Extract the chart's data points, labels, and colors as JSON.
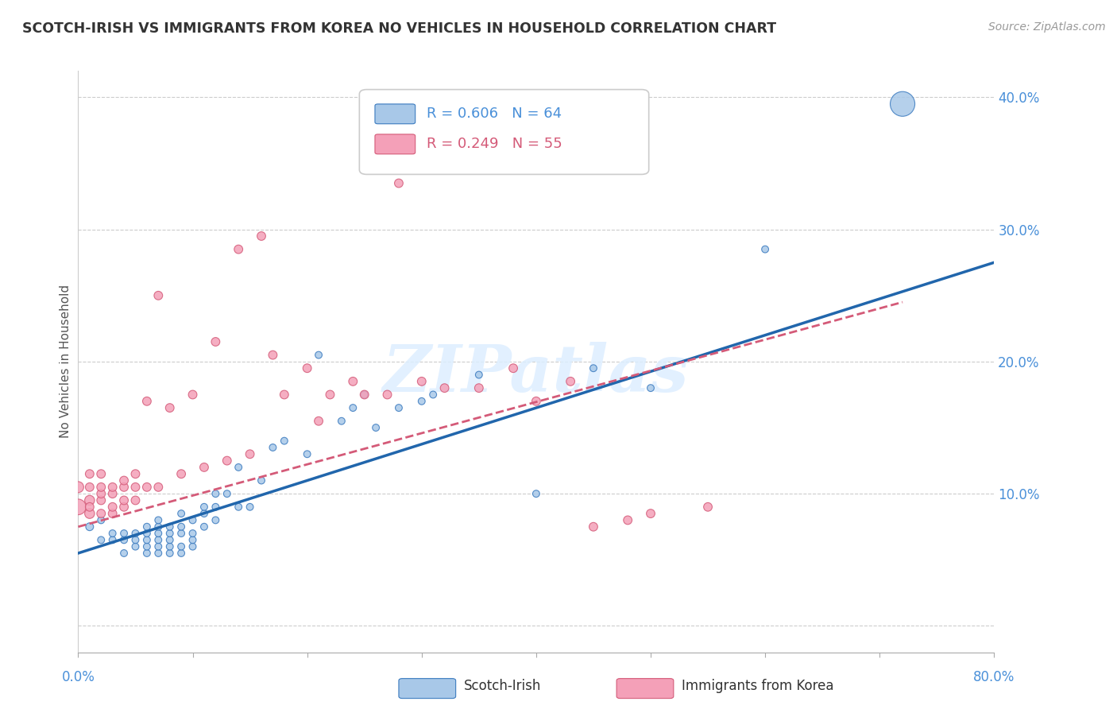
{
  "title": "SCOTCH-IRISH VS IMMIGRANTS FROM KOREA NO VEHICLES IN HOUSEHOLD CORRELATION CHART",
  "source": "Source: ZipAtlas.com",
  "ylabel": "No Vehicles in Household",
  "xlim": [
    0.0,
    0.8
  ],
  "ylim": [
    -0.02,
    0.42
  ],
  "yticks": [
    0.0,
    0.1,
    0.2,
    0.3,
    0.4
  ],
  "ytick_labels": [
    "",
    "10.0%",
    "20.0%",
    "30.0%",
    "40.0%"
  ],
  "xticks": [
    0.0,
    0.1,
    0.2,
    0.3,
    0.4,
    0.5,
    0.6,
    0.7,
    0.8
  ],
  "watermark": "ZIPatlas",
  "legend_blue_R": "R = 0.606",
  "legend_blue_N": "N = 64",
  "legend_pink_R": "R = 0.249",
  "legend_pink_N": "N = 55",
  "blue_color": "#a8c8e8",
  "pink_color": "#f4a0b8",
  "blue_edge_color": "#3a7abf",
  "pink_edge_color": "#d45a78",
  "blue_line_color": "#2166ac",
  "pink_line_color": "#d45a78",
  "blue_scatter_x": [
    0.01,
    0.02,
    0.02,
    0.03,
    0.03,
    0.04,
    0.04,
    0.04,
    0.05,
    0.05,
    0.05,
    0.06,
    0.06,
    0.06,
    0.06,
    0.06,
    0.07,
    0.07,
    0.07,
    0.07,
    0.07,
    0.07,
    0.08,
    0.08,
    0.08,
    0.08,
    0.08,
    0.09,
    0.09,
    0.09,
    0.09,
    0.09,
    0.1,
    0.1,
    0.1,
    0.1,
    0.11,
    0.11,
    0.11,
    0.12,
    0.12,
    0.12,
    0.13,
    0.14,
    0.14,
    0.15,
    0.16,
    0.17,
    0.18,
    0.2,
    0.21,
    0.23,
    0.24,
    0.25,
    0.26,
    0.28,
    0.3,
    0.31,
    0.35,
    0.4,
    0.45,
    0.5,
    0.6,
    0.72
  ],
  "blue_scatter_y": [
    0.075,
    0.065,
    0.08,
    0.065,
    0.07,
    0.055,
    0.065,
    0.07,
    0.06,
    0.065,
    0.07,
    0.055,
    0.06,
    0.065,
    0.07,
    0.075,
    0.055,
    0.06,
    0.065,
    0.07,
    0.075,
    0.08,
    0.055,
    0.06,
    0.065,
    0.07,
    0.075,
    0.055,
    0.06,
    0.07,
    0.075,
    0.085,
    0.06,
    0.065,
    0.07,
    0.08,
    0.075,
    0.085,
    0.09,
    0.08,
    0.09,
    0.1,
    0.1,
    0.09,
    0.12,
    0.09,
    0.11,
    0.135,
    0.14,
    0.13,
    0.205,
    0.155,
    0.165,
    0.175,
    0.15,
    0.165,
    0.17,
    0.175,
    0.19,
    0.1,
    0.195,
    0.18,
    0.285,
    0.395
  ],
  "blue_scatter_sizes": [
    50,
    40,
    40,
    40,
    40,
    40,
    40,
    40,
    40,
    40,
    40,
    40,
    40,
    40,
    40,
    40,
    40,
    40,
    40,
    40,
    40,
    40,
    40,
    40,
    40,
    40,
    40,
    40,
    40,
    40,
    40,
    40,
    40,
    40,
    40,
    40,
    40,
    40,
    40,
    40,
    40,
    40,
    40,
    40,
    40,
    40,
    40,
    40,
    40,
    40,
    40,
    40,
    40,
    40,
    40,
    40,
    40,
    40,
    40,
    40,
    40,
    40,
    40,
    500
  ],
  "pink_scatter_x": [
    0.0,
    0.0,
    0.01,
    0.01,
    0.01,
    0.01,
    0.01,
    0.02,
    0.02,
    0.02,
    0.02,
    0.02,
    0.03,
    0.03,
    0.03,
    0.03,
    0.04,
    0.04,
    0.04,
    0.04,
    0.05,
    0.05,
    0.05,
    0.06,
    0.06,
    0.07,
    0.07,
    0.08,
    0.09,
    0.1,
    0.11,
    0.12,
    0.13,
    0.14,
    0.15,
    0.16,
    0.17,
    0.18,
    0.2,
    0.21,
    0.22,
    0.24,
    0.25,
    0.27,
    0.28,
    0.3,
    0.32,
    0.35,
    0.38,
    0.4,
    0.43,
    0.45,
    0.48,
    0.5,
    0.55
  ],
  "pink_scatter_y": [
    0.09,
    0.105,
    0.085,
    0.095,
    0.105,
    0.115,
    0.09,
    0.085,
    0.095,
    0.1,
    0.105,
    0.115,
    0.085,
    0.09,
    0.1,
    0.105,
    0.09,
    0.095,
    0.105,
    0.11,
    0.095,
    0.105,
    0.115,
    0.105,
    0.17,
    0.105,
    0.25,
    0.165,
    0.115,
    0.175,
    0.12,
    0.215,
    0.125,
    0.285,
    0.13,
    0.295,
    0.205,
    0.175,
    0.195,
    0.155,
    0.175,
    0.185,
    0.175,
    0.175,
    0.335,
    0.185,
    0.18,
    0.18,
    0.195,
    0.17,
    0.185,
    0.075,
    0.08,
    0.085,
    0.09
  ],
  "pink_scatter_sizes": [
    200,
    100,
    80,
    80,
    60,
    60,
    60,
    60,
    60,
    60,
    60,
    60,
    60,
    60,
    60,
    60,
    60,
    60,
    60,
    60,
    60,
    60,
    60,
    60,
    60,
    60,
    60,
    60,
    60,
    60,
    60,
    60,
    60,
    60,
    60,
    60,
    60,
    60,
    60,
    60,
    60,
    60,
    60,
    60,
    60,
    60,
    60,
    60,
    60,
    60,
    60,
    60,
    60,
    60,
    60
  ],
  "blue_trend_x0": 0.0,
  "blue_trend_y0": 0.055,
  "blue_trend_x1": 0.8,
  "blue_trend_y1": 0.275,
  "pink_trend_x0": 0.0,
  "pink_trend_y0": 0.075,
  "pink_trend_x1": 0.72,
  "pink_trend_y1": 0.245
}
